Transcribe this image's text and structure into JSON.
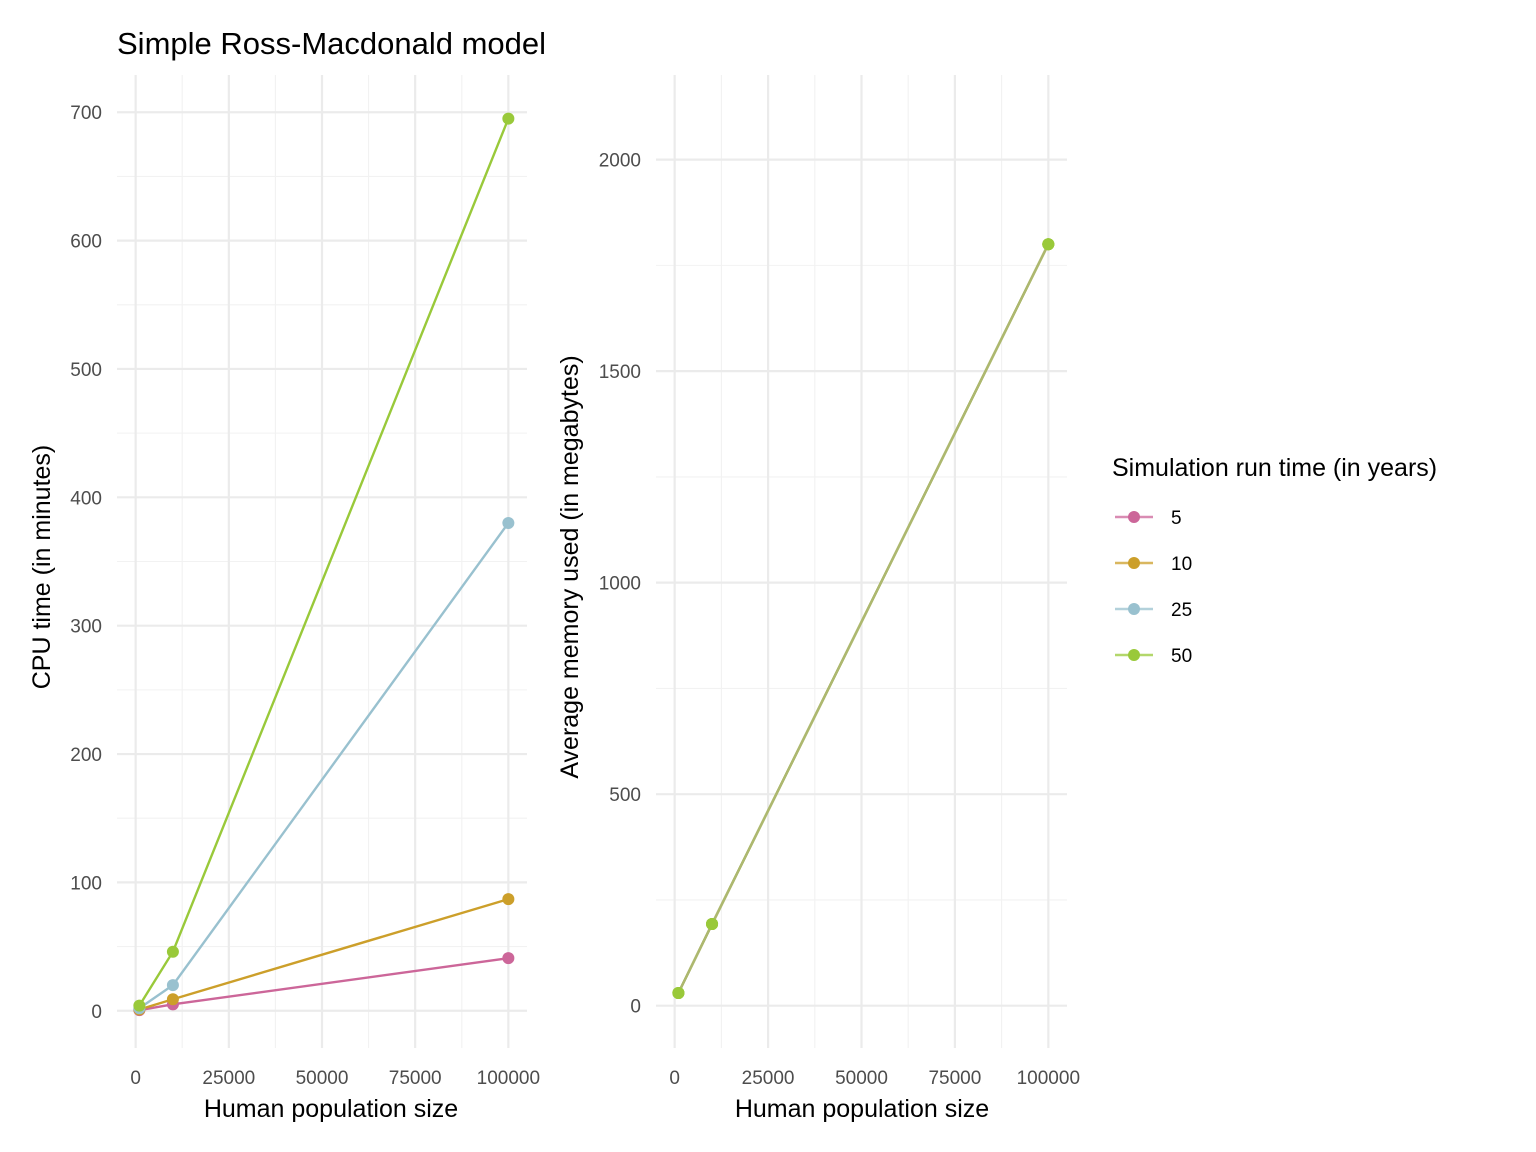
{
  "title": "Simple Ross-Macdonald model",
  "legend": {
    "title": "Simulation run time (in years)",
    "placement": "right"
  },
  "colors": {
    "5": "#cc6699",
    "10": "#cc9f2a",
    "25": "#99c1cf",
    "50": "#99c93a",
    "memory_line": "#adb86f",
    "memory_points": "#99c93a"
  },
  "chart_data": [
    {
      "type": "line",
      "xlabel": "Human population size",
      "ylabel": "CPU time (in minutes)",
      "xlim": [
        -5000,
        105000
      ],
      "ylim": [
        -29,
        729
      ],
      "xticks": [
        0,
        25000,
        50000,
        75000,
        100000
      ],
      "yticks": [
        0,
        100,
        200,
        300,
        400,
        500,
        600,
        700
      ],
      "grid": true,
      "series": [
        {
          "name": "5",
          "x": [
            1000,
            10000,
            100000
          ],
          "y": [
            0.5,
            5,
            41
          ]
        },
        {
          "name": "10",
          "x": [
            1000,
            10000,
            100000
          ],
          "y": [
            1,
            9,
            87
          ]
        },
        {
          "name": "25",
          "x": [
            1000,
            10000,
            100000
          ],
          "y": [
            2,
            20,
            380
          ]
        },
        {
          "name": "50",
          "x": [
            1000,
            10000,
            100000
          ],
          "y": [
            4,
            46,
            695
          ]
        }
      ]
    },
    {
      "type": "line",
      "xlabel": "Human population size",
      "ylabel": "Average memory used (in megabytes)",
      "xlim": [
        -5000,
        105000
      ],
      "ylim": [
        -100,
        2200
      ],
      "xticks": [
        0,
        25000,
        50000,
        75000,
        100000
      ],
      "yticks": [
        0,
        500,
        1000,
        1500,
        2000
      ],
      "grid": true,
      "series": [
        {
          "name": "5",
          "x": [
            1000,
            10000,
            100000
          ],
          "y": [
            30,
            193,
            1800
          ]
        },
        {
          "name": "10",
          "x": [
            1000,
            10000,
            100000
          ],
          "y": [
            30,
            193,
            1800
          ]
        },
        {
          "name": "25",
          "x": [
            1000,
            10000,
            100000
          ],
          "y": [
            30,
            193,
            1800
          ]
        },
        {
          "name": "50",
          "x": [
            1000,
            10000,
            100000
          ],
          "y": [
            30,
            193,
            1800
          ]
        }
      ]
    }
  ]
}
